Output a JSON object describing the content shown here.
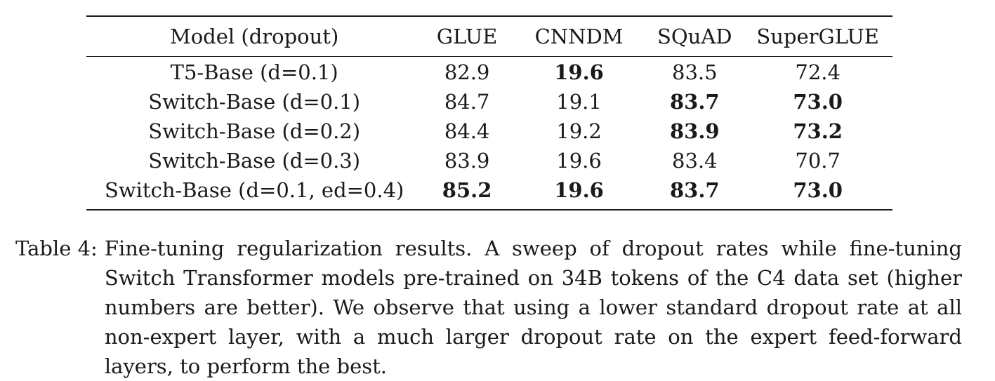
{
  "table": {
    "columns": [
      "Model (dropout)",
      "GLUE",
      "CNNDM",
      "SQuAD",
      "SuperGLUE"
    ],
    "rows": [
      {
        "model": "T5-Base (d=0.1)",
        "glue": "82.9",
        "cnndm": "19.6",
        "squad": "83.5",
        "superglue": "72.4",
        "bold": {
          "glue": false,
          "cnndm": true,
          "squad": false,
          "superglue": false
        }
      },
      {
        "model": "Switch-Base (d=0.1)",
        "glue": "84.7",
        "cnndm": "19.1",
        "squad": "83.7",
        "superglue": "73.0",
        "bold": {
          "glue": false,
          "cnndm": false,
          "squad": true,
          "superglue": true
        }
      },
      {
        "model": "Switch-Base (d=0.2)",
        "glue": "84.4",
        "cnndm": "19.2",
        "squad": "83.9",
        "superglue": "73.2",
        "bold": {
          "glue": false,
          "cnndm": false,
          "squad": true,
          "superglue": true
        }
      },
      {
        "model": "Switch-Base (d=0.3)",
        "glue": "83.9",
        "cnndm": "19.6",
        "squad": "83.4",
        "superglue": "70.7",
        "bold": {
          "glue": false,
          "cnndm": false,
          "squad": false,
          "superglue": false
        }
      },
      {
        "model": "Switch-Base (d=0.1, ed=0.4)",
        "glue": "85.2",
        "cnndm": "19.6",
        "squad": "83.7",
        "superglue": "73.0",
        "bold": {
          "glue": true,
          "cnndm": true,
          "squad": true,
          "superglue": true
        }
      }
    ]
  },
  "caption": {
    "label": "Table 4:",
    "text": "Fine-tuning regularization results. A sweep of dropout rates while fine-tuning Switch Transformer models pre-trained on 34B tokens of the C4 data set (higher numbers are better). We observe that using a lower standard dropout rate at all non-expert layer, with a much larger dropout rate on the expert feed-forward layers, to perform the best."
  }
}
